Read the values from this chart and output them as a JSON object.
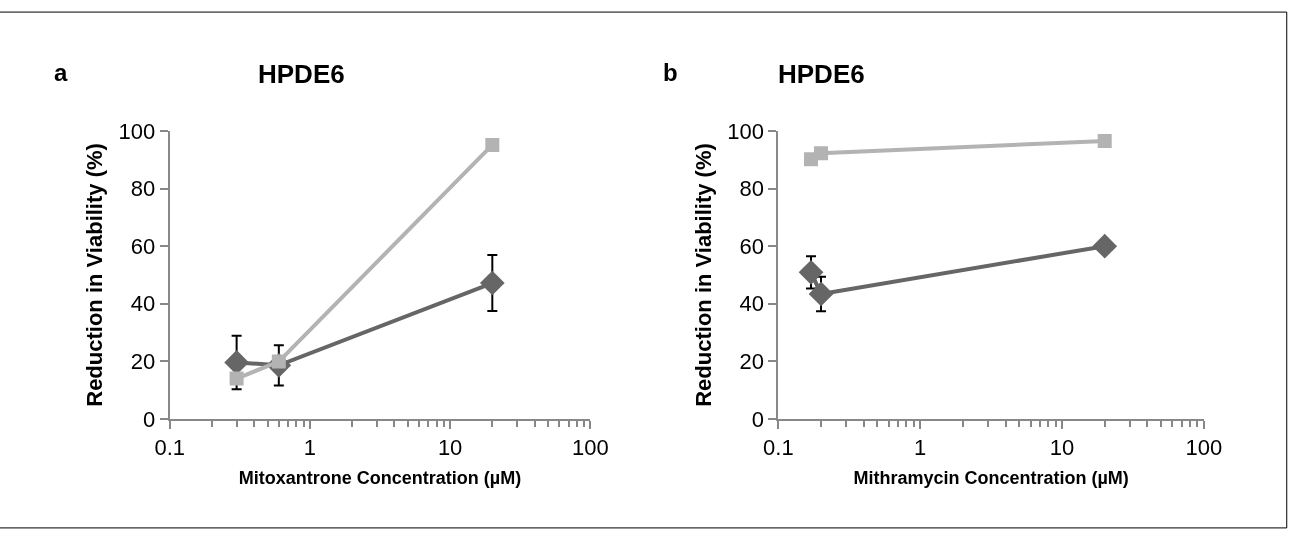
{
  "chart_data": [
    {
      "type": "line",
      "title": "HPDE6",
      "xlabel": "Mitoxantrone Concentration (µM)",
      "ylabel": "Reduction in Viability (%)",
      "annotations": [
        "a"
      ],
      "log": "x",
      "xlim": [
        0.1,
        100
      ],
      "xticks": [
        0.1,
        1,
        10,
        100
      ],
      "ylim": [
        0,
        100
      ],
      "yticks": [
        0,
        20,
        40,
        60,
        80,
        100
      ],
      "line_style": "solid",
      "series": [
        {
          "color": "#666666",
          "marker": "diamond",
          "x": [
            0.3,
            0.6,
            20
          ],
          "values": [
            19.6,
            18.6,
            47.2
          ],
          "errors": [
            9.3,
            7,
            9.7
          ]
        },
        {
          "color": "#b3b3b3",
          "marker": "square",
          "x": [
            0.3,
            0.6,
            20
          ],
          "values": [
            14,
            19.9,
            95.2
          ]
        }
      ]
    },
    {
      "type": "line",
      "title": "HPDE6",
      "xlabel": "Mithramycin Concentration (µM)",
      "ylabel": "Reduction in Viability (%)",
      "annotations": [
        "b"
      ],
      "log": "x",
      "xlim": [
        0.1,
        100
      ],
      "xticks": [
        0.1,
        1,
        10,
        100
      ],
      "ylim": [
        0,
        100
      ],
      "yticks": [
        0,
        20,
        40,
        60,
        80,
        100
      ],
      "line_style": "solid",
      "series": [
        {
          "color": "#666666",
          "marker": "diamond",
          "x": [
            0.17,
            0.2,
            20
          ],
          "values": [
            50.9,
            43.4,
            60
          ],
          "errors": [
            5.6,
            6,
            1
          ]
        },
        {
          "color": "#b3b3b3",
          "marker": "square",
          "x": [
            0.17,
            0.2,
            20
          ],
          "values": [
            90.2,
            92.3,
            96.6
          ]
        }
      ]
    }
  ]
}
